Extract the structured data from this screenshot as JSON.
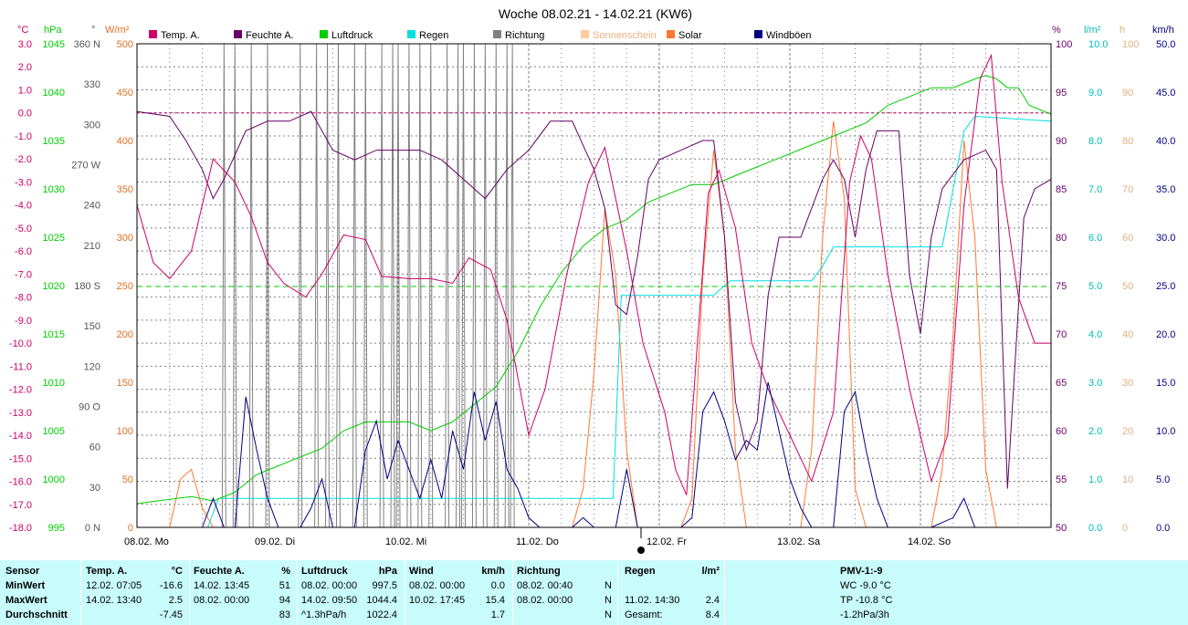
{
  "title": "Woche 08.02.21 - 14.02.21 (KW6)",
  "colors": {
    "temp": "#cc0066",
    "humidity": "#660066",
    "pressure": "#00cc00",
    "rain": "#00e0e0",
    "direction": "#808080",
    "sunshine": "#ffcc99",
    "solar": "#ff7733",
    "gust": "#000080",
    "grid": "#808080"
  },
  "chart_data": {
    "type": "line",
    "title": "Woche 08.02.21 - 14.02.21 (KW6)",
    "x_unit": "hours since 08.02. 00:00",
    "x_range": [
      0,
      168
    ],
    "day_labels": [
      "08.02.  Mo",
      "09.02.  Di",
      "10.02.  Mi",
      "11.02.  Do",
      "12.02.  Fr",
      "13.02.  Sa",
      "14.02.  So"
    ],
    "axes": {
      "temp": {
        "unit": "°C",
        "min": -18,
        "max": 3,
        "ticks": [
          "3.0",
          "2.0",
          "1.0",
          "0.0",
          "-1.0",
          "-2.0",
          "-3.0",
          "-4.0",
          "-5.0",
          "-6.0",
          "-7.0",
          "-8.0",
          "-9.0",
          "-10.0",
          "-11.0",
          "-12.0",
          "-13.0",
          "-14.0",
          "-15.0",
          "-16.0",
          "-17.0",
          "-18.0"
        ]
      },
      "pressure": {
        "unit": "hPa",
        "min": 995,
        "max": 1050,
        "ticks": [
          "1045",
          "1040",
          "1035",
          "1030",
          "1025",
          "1020",
          "1015",
          "1010",
          "1005",
          "1000",
          "995"
        ]
      },
      "direction": {
        "unit": "°",
        "min": 0,
        "max": 360,
        "ticks": [
          "360 N",
          "330",
          "300",
          "270 W",
          "240",
          "210",
          "180 S",
          "150",
          "120",
          "90 O",
          "60",
          "30",
          "0 N"
        ]
      },
      "solar": {
        "unit": "W/m²",
        "min": 0,
        "max": 500,
        "ticks": [
          "500",
          "450",
          "400",
          "350",
          "300",
          "250",
          "200",
          "150",
          "100",
          "50",
          "0"
        ]
      },
      "humidity": {
        "unit": "%",
        "min": 50,
        "max": 100,
        "ticks": [
          "100",
          "95",
          "90",
          "85",
          "80",
          "75",
          "70",
          "65",
          "60",
          "55",
          "50"
        ]
      },
      "rain": {
        "unit": "l/m²",
        "min": 0,
        "max": 10,
        "ticks": [
          "10.0",
          "9.0",
          "8.0",
          "7.0",
          "6.0",
          "5.0",
          "4.0",
          "3.0",
          "2.0",
          "1.0",
          "0.0"
        ]
      },
      "sunshine": {
        "unit": "h",
        "min": 0,
        "max": 100,
        "ticks": [
          "100",
          "90",
          "80",
          "70",
          "60",
          "50",
          "40",
          "30",
          "20",
          "10",
          "0"
        ]
      },
      "wind": {
        "unit": "km/h",
        "min": 0,
        "max": 50,
        "ticks": [
          "50.0",
          "45.0",
          "40.0",
          "35.0",
          "30.0",
          "25.0",
          "20.0",
          "15.0",
          "10.0",
          "5.0",
          "0.0"
        ]
      }
    },
    "legend": [
      "Temp. A.",
      "Feuchte A.",
      "Luftdruck",
      "Regen",
      "Richtung",
      "Sonnenschein",
      "Solar",
      "Windböen"
    ],
    "temp_series": [
      [
        0,
        -4
      ],
      [
        3,
        -6.5
      ],
      [
        6,
        -7.2
      ],
      [
        10,
        -6
      ],
      [
        14,
        -2
      ],
      [
        18,
        -3
      ],
      [
        21,
        -4.5
      ],
      [
        24,
        -6.5
      ],
      [
        27,
        -7.4
      ],
      [
        31,
        -8
      ],
      [
        34,
        -7
      ],
      [
        38,
        -5.3
      ],
      [
        42,
        -5.5
      ],
      [
        45,
        -7.1
      ],
      [
        50,
        -7.2
      ],
      [
        54,
        -7.2
      ],
      [
        58,
        -7.4
      ],
      [
        61,
        -6.3
      ],
      [
        65,
        -6.8
      ],
      [
        68,
        -9
      ],
      [
        72,
        -14
      ],
      [
        75,
        -12
      ],
      [
        79,
        -7
      ],
      [
        83,
        -3
      ],
      [
        86,
        -1.5
      ],
      [
        90,
        -6
      ],
      [
        93,
        -10
      ],
      [
        97,
        -13
      ],
      [
        99,
        -15.5
      ],
      [
        101,
        -16.6
      ],
      [
        103,
        -10
      ],
      [
        105,
        -3.5
      ],
      [
        107,
        -2.5
      ],
      [
        110,
        -5
      ],
      [
        113,
        -10
      ],
      [
        116,
        -12
      ],
      [
        120,
        -14
      ],
      [
        124,
        -16
      ],
      [
        128,
        -13
      ],
      [
        131,
        -3
      ],
      [
        133,
        -1
      ],
      [
        135,
        -2
      ],
      [
        138,
        -7
      ],
      [
        142,
        -12
      ],
      [
        146,
        -16
      ],
      [
        149,
        -14
      ],
      [
        152,
        -4
      ],
      [
        155,
        1.5
      ],
      [
        157,
        2.5
      ],
      [
        159,
        -3
      ],
      [
        162,
        -8
      ],
      [
        165,
        -10
      ],
      [
        168,
        -10
      ]
    ],
    "humidity_series": [
      [
        0,
        93
      ],
      [
        6,
        92.5
      ],
      [
        9,
        90
      ],
      [
        12,
        87
      ],
      [
        14,
        84
      ],
      [
        16,
        86
      ],
      [
        20,
        91
      ],
      [
        24,
        92
      ],
      [
        28,
        92
      ],
      [
        32,
        93
      ],
      [
        36,
        89
      ],
      [
        40,
        88
      ],
      [
        44,
        89
      ],
      [
        48,
        89
      ],
      [
        52,
        89
      ],
      [
        56,
        88
      ],
      [
        60,
        86
      ],
      [
        64,
        84
      ],
      [
        68,
        87
      ],
      [
        72,
        89
      ],
      [
        76,
        92
      ],
      [
        80,
        92
      ],
      [
        84,
        87
      ],
      [
        86,
        83
      ],
      [
        88,
        73
      ],
      [
        90,
        72
      ],
      [
        92,
        78
      ],
      [
        94,
        86
      ],
      [
        96,
        88
      ],
      [
        100,
        89
      ],
      [
        104,
        90
      ],
      [
        106,
        90
      ],
      [
        108,
        80
      ],
      [
        110,
        63
      ],
      [
        112,
        58
      ],
      [
        114,
        61
      ],
      [
        116,
        74
      ],
      [
        118,
        80
      ],
      [
        120,
        80
      ],
      [
        122,
        80
      ],
      [
        126,
        86
      ],
      [
        128,
        88
      ],
      [
        130,
        86
      ],
      [
        132,
        80
      ],
      [
        134,
        87
      ],
      [
        136,
        91
      ],
      [
        140,
        91
      ],
      [
        142,
        76
      ],
      [
        144,
        70
      ],
      [
        146,
        80
      ],
      [
        148,
        85
      ],
      [
        152,
        88
      ],
      [
        156,
        89
      ],
      [
        158,
        87
      ],
      [
        160,
        54
      ],
      [
        163,
        82
      ],
      [
        165,
        85
      ],
      [
        168,
        86
      ]
    ],
    "pressure_series": [
      [
        0,
        997.7
      ],
      [
        6,
        998.2
      ],
      [
        10,
        998.5
      ],
      [
        14,
        998
      ],
      [
        18,
        999
      ],
      [
        22,
        1001
      ],
      [
        26,
        1002
      ],
      [
        30,
        1003
      ],
      [
        34,
        1004
      ],
      [
        38,
        1006
      ],
      [
        42,
        1007
      ],
      [
        46,
        1007
      ],
      [
        50,
        1007
      ],
      [
        54,
        1006
      ],
      [
        58,
        1007
      ],
      [
        62,
        1009
      ],
      [
        66,
        1011
      ],
      [
        70,
        1015
      ],
      [
        74,
        1020
      ],
      [
        78,
        1024
      ],
      [
        82,
        1027
      ],
      [
        86,
        1029
      ],
      [
        90,
        1030
      ],
      [
        94,
        1032
      ],
      [
        98,
        1033
      ],
      [
        102,
        1034
      ],
      [
        106,
        1034
      ],
      [
        110,
        1035
      ],
      [
        114,
        1036
      ],
      [
        118,
        1037
      ],
      [
        122,
        1038
      ],
      [
        126,
        1039
      ],
      [
        130,
        1040
      ],
      [
        134,
        1041
      ],
      [
        138,
        1043
      ],
      [
        142,
        1044
      ],
      [
        146,
        1045
      ],
      [
        150,
        1045
      ],
      [
        154,
        1046
      ],
      [
        156,
        1046.4
      ],
      [
        158,
        1046
      ],
      [
        160,
        1045
      ],
      [
        162,
        1045
      ],
      [
        164,
        1043
      ],
      [
        168,
        1042
      ]
    ],
    "rain_series": [
      [
        0,
        0
      ],
      [
        13,
        0
      ],
      [
        15,
        0.6
      ],
      [
        16,
        0.6
      ],
      [
        86,
        0.6
      ],
      [
        87.5,
        0.6
      ],
      [
        89,
        4.8
      ],
      [
        90,
        4.8
      ],
      [
        106,
        4.8
      ],
      [
        107,
        4.9
      ],
      [
        109,
        5.1
      ],
      [
        124,
        5.1
      ],
      [
        126,
        5.4
      ],
      [
        128,
        5.8
      ],
      [
        134,
        5.8
      ],
      [
        148,
        5.8
      ],
      [
        150,
        7
      ],
      [
        152,
        8.2
      ],
      [
        154,
        8.5
      ],
      [
        168,
        8.4
      ]
    ],
    "solar_series": [
      [
        0,
        0
      ],
      [
        6,
        0
      ],
      [
        8,
        50
      ],
      [
        10,
        60
      ],
      [
        12,
        20
      ],
      [
        14,
        0
      ],
      [
        78,
        0
      ],
      [
        80,
        0
      ],
      [
        82,
        40
      ],
      [
        84,
        160
      ],
      [
        86,
        330
      ],
      [
        88,
        260
      ],
      [
        90,
        80
      ],
      [
        92,
        0
      ],
      [
        100,
        0
      ],
      [
        102,
        30
      ],
      [
        104,
        260
      ],
      [
        106,
        390
      ],
      [
        108,
        300
      ],
      [
        110,
        80
      ],
      [
        112,
        0
      ],
      [
        122,
        0
      ],
      [
        124,
        80
      ],
      [
        126,
        300
      ],
      [
        128,
        420
      ],
      [
        130,
        340
      ],
      [
        132,
        40
      ],
      [
        134,
        0
      ],
      [
        146,
        0
      ],
      [
        148,
        60
      ],
      [
        150,
        200
      ],
      [
        152,
        400
      ],
      [
        154,
        300
      ],
      [
        156,
        60
      ],
      [
        158,
        0
      ],
      [
        168,
        0
      ]
    ],
    "gust_series": [
      [
        0,
        0
      ],
      [
        12,
        0
      ],
      [
        14,
        3
      ],
      [
        16,
        0
      ],
      [
        18,
        0
      ],
      [
        20,
        13.5
      ],
      [
        22,
        8
      ],
      [
        24,
        3
      ],
      [
        26,
        0
      ],
      [
        30,
        0
      ],
      [
        32,
        2
      ],
      [
        34,
        5
      ],
      [
        36,
        0
      ],
      [
        40,
        0
      ],
      [
        42,
        8
      ],
      [
        44,
        11
      ],
      [
        46,
        5
      ],
      [
        48,
        9
      ],
      [
        50,
        6
      ],
      [
        52,
        3
      ],
      [
        54,
        7
      ],
      [
        56,
        3
      ],
      [
        58,
        10
      ],
      [
        60,
        6
      ],
      [
        62,
        14
      ],
      [
        64,
        9
      ],
      [
        66,
        13
      ],
      [
        68,
        6
      ],
      [
        70,
        4
      ],
      [
        72,
        1
      ],
      [
        74,
        0
      ],
      [
        80,
        0
      ],
      [
        82,
        1
      ],
      [
        84,
        0
      ],
      [
        88,
        0
      ],
      [
        90,
        6
      ],
      [
        92,
        0
      ],
      [
        100,
        0
      ],
      [
        102,
        1
      ],
      [
        104,
        12
      ],
      [
        106,
        14
      ],
      [
        108,
        11
      ],
      [
        110,
        7
      ],
      [
        112,
        9
      ],
      [
        114,
        8
      ],
      [
        116,
        15
      ],
      [
        118,
        10
      ],
      [
        120,
        5
      ],
      [
        122,
        2
      ],
      [
        124,
        0
      ],
      [
        128,
        0
      ],
      [
        130,
        12
      ],
      [
        132,
        14
      ],
      [
        134,
        8
      ],
      [
        136,
        3
      ],
      [
        138,
        0
      ],
      [
        146,
        0
      ],
      [
        150,
        1
      ],
      [
        152,
        3
      ],
      [
        154,
        0
      ],
      [
        168,
        0
      ]
    ],
    "direction_spikes": [
      16,
      18,
      21,
      24,
      30,
      33,
      35,
      37,
      40,
      42,
      45,
      47,
      48,
      50,
      52,
      54,
      57,
      59,
      60,
      62,
      64,
      66,
      68,
      69
    ],
    "ref_lines": {
      "temp_zero": 0,
      "pressure_mean": 1022.4
    }
  },
  "stats": {
    "header": [
      "Sensor",
      "Temp. A.",
      "°C",
      "Feuchte A.",
      "%",
      "Luftdruck",
      "hPa",
      "Wind",
      "km/h",
      "Richtung",
      "Regen",
      "l/m²",
      "PMV-1:-9"
    ],
    "rows": [
      {
        "label": "MinWert",
        "temp_time": "12.02.  07:05",
        "temp_val": "-16.6",
        "hum_time": "14.02.  13:45",
        "hum_val": "51",
        "pres_time": "08.02.  00:00",
        "pres_val": "997.5",
        "wind_time": "08.02.  00:00",
        "wind_val": "0.0",
        "dir_time": "08.02.  00:40",
        "dir_val": "N",
        "rain_time": "",
        "rain_val": "",
        "pmv": "WC -9.0 °C"
      },
      {
        "label": "MaxWert",
        "temp_time": "14.02.  13:40",
        "temp_val": "2.5",
        "hum_time": "08.02.  00:00",
        "hum_val": "94",
        "pres_time": "14.02.  09:50",
        "pres_val": "1044.4",
        "wind_time": "10.02.  17:45",
        "wind_val": "15.4",
        "dir_time": "08.02.  00:00",
        "dir_val": "N",
        "rain_time": "11.02.  14:30",
        "rain_val": "2.4",
        "pmv": "TP -10.8 °C"
      },
      {
        "label": "Durchschnitt",
        "temp_time": "",
        "temp_val": "-7.45",
        "hum_time": "",
        "hum_val": "83",
        "pres_time": "^1.3hPa/h",
        "pres_val": "1022.4",
        "wind_time": "",
        "wind_val": "1.7",
        "dir_time": "",
        "dir_val": "N",
        "rain_time": "Gesamt:",
        "rain_val": "8.4",
        "pmv": "-1.2hPa/3h"
      }
    ]
  }
}
